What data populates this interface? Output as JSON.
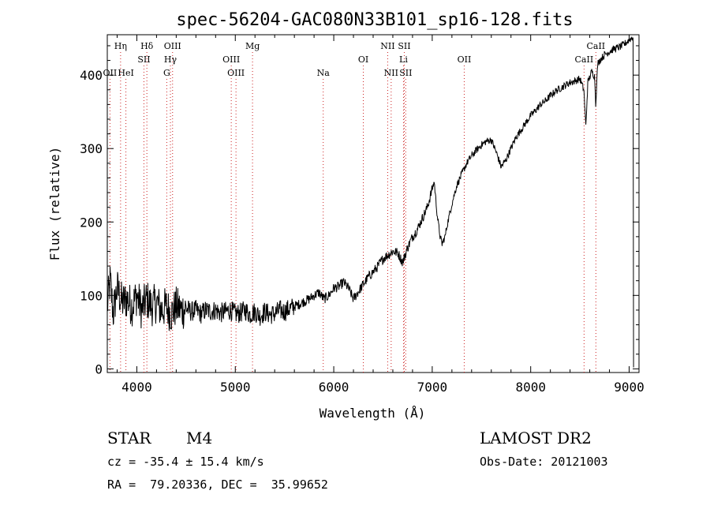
{
  "chart_data": {
    "type": "line",
    "title": "spec-56204-GAC080N33B101_sp16-128.fits",
    "xlabel": "Wavelength (Å)",
    "ylabel": "Flux (relative)",
    "xlim": [
      3700,
      9100
    ],
    "ylim": [
      -5,
      455
    ],
    "x_ticks": [
      4000,
      5000,
      6000,
      7000,
      8000,
      9000
    ],
    "y_ticks": [
      0,
      100,
      200,
      300,
      400
    ],
    "grid": false,
    "line_color": "#000000",
    "marker_color": "#cc2222",
    "series_points": [
      [
        3700,
        85
      ],
      [
        3730,
        120
      ],
      [
        3760,
        75
      ],
      [
        3800,
        110
      ],
      [
        3850,
        90
      ],
      [
        3900,
        95
      ],
      [
        3950,
        85
      ],
      [
        4000,
        100
      ],
      [
        4050,
        80
      ],
      [
        4100,
        95
      ],
      [
        4150,
        85
      ],
      [
        4200,
        90
      ],
      [
        4250,
        80
      ],
      [
        4300,
        85
      ],
      [
        4350,
        75
      ],
      [
        4400,
        85
      ],
      [
        4450,
        80
      ],
      [
        4500,
        82
      ],
      [
        4550,
        78
      ],
      [
        4600,
        80
      ],
      [
        4650,
        75
      ],
      [
        4700,
        80
      ],
      [
        4750,
        78
      ],
      [
        4800,
        80
      ],
      [
        4850,
        76
      ],
      [
        4900,
        78
      ],
      [
        4950,
        80
      ],
      [
        5000,
        75
      ],
      [
        5050,
        76
      ],
      [
        5100,
        80
      ],
      [
        5150,
        74
      ],
      [
        5200,
        78
      ],
      [
        5250,
        72
      ],
      [
        5300,
        78
      ],
      [
        5350,
        74
      ],
      [
        5400,
        75
      ],
      [
        5450,
        80
      ],
      [
        5500,
        78
      ],
      [
        5550,
        82
      ],
      [
        5600,
        85
      ],
      [
        5650,
        88
      ],
      [
        5700,
        92
      ],
      [
        5750,
        95
      ],
      [
        5800,
        100
      ],
      [
        5850,
        104
      ],
      [
        5900,
        95
      ],
      [
        5950,
        100
      ],
      [
        6000,
        110
      ],
      [
        6050,
        112
      ],
      [
        6100,
        118
      ],
      [
        6150,
        110
      ],
      [
        6200,
        95
      ],
      [
        6250,
        105
      ],
      [
        6300,
        115
      ],
      [
        6350,
        125
      ],
      [
        6400,
        132
      ],
      [
        6450,
        140
      ],
      [
        6500,
        150
      ],
      [
        6550,
        155
      ],
      [
        6600,
        160
      ],
      [
        6650,
        158
      ],
      [
        6700,
        145
      ],
      [
        6750,
        165
      ],
      [
        6800,
        180
      ],
      [
        6850,
        190
      ],
      [
        6900,
        205
      ],
      [
        6950,
        220
      ],
      [
        7000,
        245
      ],
      [
        7020,
        255
      ],
      [
        7050,
        210
      ],
      [
        7080,
        180
      ],
      [
        7100,
        170
      ],
      [
        7130,
        180
      ],
      [
        7150,
        195
      ],
      [
        7200,
        225
      ],
      [
        7250,
        250
      ],
      [
        7300,
        265
      ],
      [
        7350,
        280
      ],
      [
        7400,
        290
      ],
      [
        7450,
        298
      ],
      [
        7500,
        305
      ],
      [
        7550,
        310
      ],
      [
        7600,
        312
      ],
      [
        7650,
        295
      ],
      [
        7700,
        275
      ],
      [
        7750,
        285
      ],
      [
        7800,
        300
      ],
      [
        7850,
        315
      ],
      [
        7900,
        325
      ],
      [
        7950,
        335
      ],
      [
        8000,
        345
      ],
      [
        8050,
        352
      ],
      [
        8100,
        360
      ],
      [
        8150,
        365
      ],
      [
        8200,
        372
      ],
      [
        8250,
        378
      ],
      [
        8300,
        382
      ],
      [
        8350,
        386
      ],
      [
        8400,
        390
      ],
      [
        8450,
        392
      ],
      [
        8500,
        395
      ],
      [
        8540,
        380
      ],
      [
        8560,
        330
      ],
      [
        8580,
        390
      ],
      [
        8620,
        405
      ],
      [
        8650,
        398
      ],
      [
        8660,
        360
      ],
      [
        8680,
        415
      ],
      [
        8700,
        420
      ],
      [
        8750,
        428
      ],
      [
        8800,
        432
      ],
      [
        8850,
        436
      ],
      [
        8900,
        438
      ],
      [
        8950,
        442
      ],
      [
        9000,
        448
      ],
      [
        9020,
        450
      ],
      [
        9040,
        452
      ]
    ],
    "line_markers": [
      {
        "wavelength": 3835,
        "label": "Hη",
        "row": 0
      },
      {
        "wavelength": 3727,
        "label": "OII",
        "row": 2
      },
      {
        "wavelength": 3889,
        "label": "HeI",
        "row": 2
      },
      {
        "wavelength": 4102,
        "label": "Hδ",
        "row": 0
      },
      {
        "wavelength": 4072,
        "label": "SII",
        "row": 1
      },
      {
        "wavelength": 4363,
        "label": "OIII",
        "row": 0
      },
      {
        "wavelength": 4341,
        "label": "Hγ",
        "row": 1
      },
      {
        "wavelength": 4304,
        "label": "G",
        "row": 2
      },
      {
        "wavelength": 4959,
        "label": "OIII",
        "row": 1
      },
      {
        "wavelength": 5007,
        "label": "OIII",
        "row": 2
      },
      {
        "wavelength": 5175,
        "label": "Mg",
        "row": 0
      },
      {
        "wavelength": 5893,
        "label": "Na",
        "row": 2
      },
      {
        "wavelength": 6300,
        "label": "OI",
        "row": 1
      },
      {
        "wavelength": 6548,
        "label": "NII",
        "row": 0
      },
      {
        "wavelength": 6583,
        "label": "NII",
        "row": 2
      },
      {
        "wavelength": 6716,
        "label": "SII",
        "row": 0
      },
      {
        "wavelength": 6708,
        "label": "Li",
        "row": 1
      },
      {
        "wavelength": 6731,
        "label": "SII",
        "row": 2
      },
      {
        "wavelength": 7325,
        "label": "OII",
        "row": 1
      },
      {
        "wavelength": 8542,
        "label": "CaII",
        "row": 1
      },
      {
        "wavelength": 8662,
        "label": "CaII",
        "row": 0
      }
    ]
  },
  "footer": {
    "object_class": "STAR",
    "subclass": "M4",
    "survey": "LAMOST DR2",
    "cz": "cz = -35.4 ± 15.4 km/s",
    "obs_date": "Obs-Date: 20121003",
    "coords": "RA =  79.20336, DEC =  35.99652"
  }
}
